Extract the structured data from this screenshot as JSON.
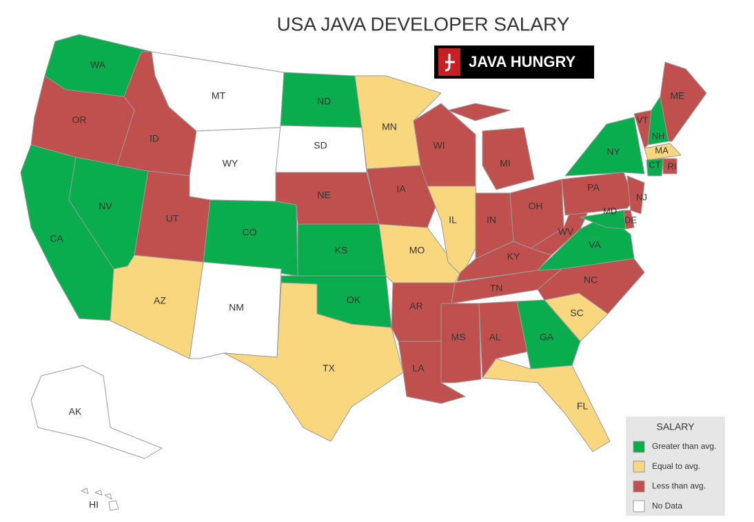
{
  "title": "USA JAVA DEVELOPER SALARY",
  "logo": {
    "text": "JAVA HUNGRY"
  },
  "legend": {
    "title": "SALARY",
    "items": [
      {
        "label": "Greater than avg.",
        "color": "#0aad4e"
      },
      {
        "label": "Equal to avg.",
        "color": "#f9d77e"
      },
      {
        "label": "Less than avg.",
        "color": "#c0504d"
      },
      {
        "label": "No Data",
        "color": "#ffffff"
      }
    ]
  },
  "states": [
    {
      "label": "WA",
      "category": "Greater than avg."
    },
    {
      "label": "OR",
      "category": "Less than avg."
    },
    {
      "label": "CA",
      "category": "Greater than avg."
    },
    {
      "label": "NV",
      "category": "Greater than avg."
    },
    {
      "label": "ID",
      "category": "Less than avg."
    },
    {
      "label": "MT",
      "category": "No Data"
    },
    {
      "label": "WY",
      "category": "No Data"
    },
    {
      "label": "UT",
      "category": "Less than avg."
    },
    {
      "label": "AZ",
      "category": "Equal to avg."
    },
    {
      "label": "CO",
      "category": "Greater than avg."
    },
    {
      "label": "NM",
      "category": "No Data"
    },
    {
      "label": "ND",
      "category": "Greater than avg."
    },
    {
      "label": "SD",
      "category": "No Data"
    },
    {
      "label": "NE",
      "category": "Less than avg."
    },
    {
      "label": "KS",
      "category": "Greater than avg."
    },
    {
      "label": "OK",
      "category": "Greater than avg."
    },
    {
      "label": "TX",
      "category": "Equal to avg."
    },
    {
      "label": "MN",
      "category": "Equal to avg."
    },
    {
      "label": "IA",
      "category": "Less than avg."
    },
    {
      "label": "MO",
      "category": "Equal to avg."
    },
    {
      "label": "AR",
      "category": "Less than avg."
    },
    {
      "label": "LA",
      "category": "Less than avg."
    },
    {
      "label": "WI",
      "category": "Less than avg."
    },
    {
      "label": "IL",
      "category": "Equal to avg."
    },
    {
      "label": "MI",
      "category": "Less than avg."
    },
    {
      "label": "IN",
      "category": "Less than avg."
    },
    {
      "label": "OH",
      "category": "Less than avg."
    },
    {
      "label": "KY",
      "category": "Less than avg."
    },
    {
      "label": "TN",
      "category": "Less than avg."
    },
    {
      "label": "MS",
      "category": "Less than avg."
    },
    {
      "label": "AL",
      "category": "Less than avg."
    },
    {
      "label": "GA",
      "category": "Greater than avg."
    },
    {
      "label": "FL",
      "category": "Equal to avg."
    },
    {
      "label": "SC",
      "category": "Equal to avg."
    },
    {
      "label": "NC",
      "category": "Less than avg."
    },
    {
      "label": "VA",
      "category": "Greater than avg."
    },
    {
      "label": "WV",
      "category": "Less than avg."
    },
    {
      "label": "PA",
      "category": "Less than avg."
    },
    {
      "label": "NY",
      "category": "Greater than avg."
    },
    {
      "label": "NJ",
      "category": "Less than avg."
    },
    {
      "label": "DE",
      "category": "Less than avg."
    },
    {
      "label": "MD",
      "category": "Greater than avg."
    },
    {
      "label": "VT",
      "category": "Less than avg."
    },
    {
      "label": "NH",
      "category": "Greater than avg."
    },
    {
      "label": "ME",
      "category": "Less than avg."
    },
    {
      "label": "MA",
      "category": "Equal to avg."
    },
    {
      "label": "CT",
      "category": "Greater than avg."
    },
    {
      "label": "RI",
      "category": "Less than avg."
    },
    {
      "label": "AK",
      "category": "No Data"
    },
    {
      "label": "HI",
      "category": "No Data"
    }
  ]
}
